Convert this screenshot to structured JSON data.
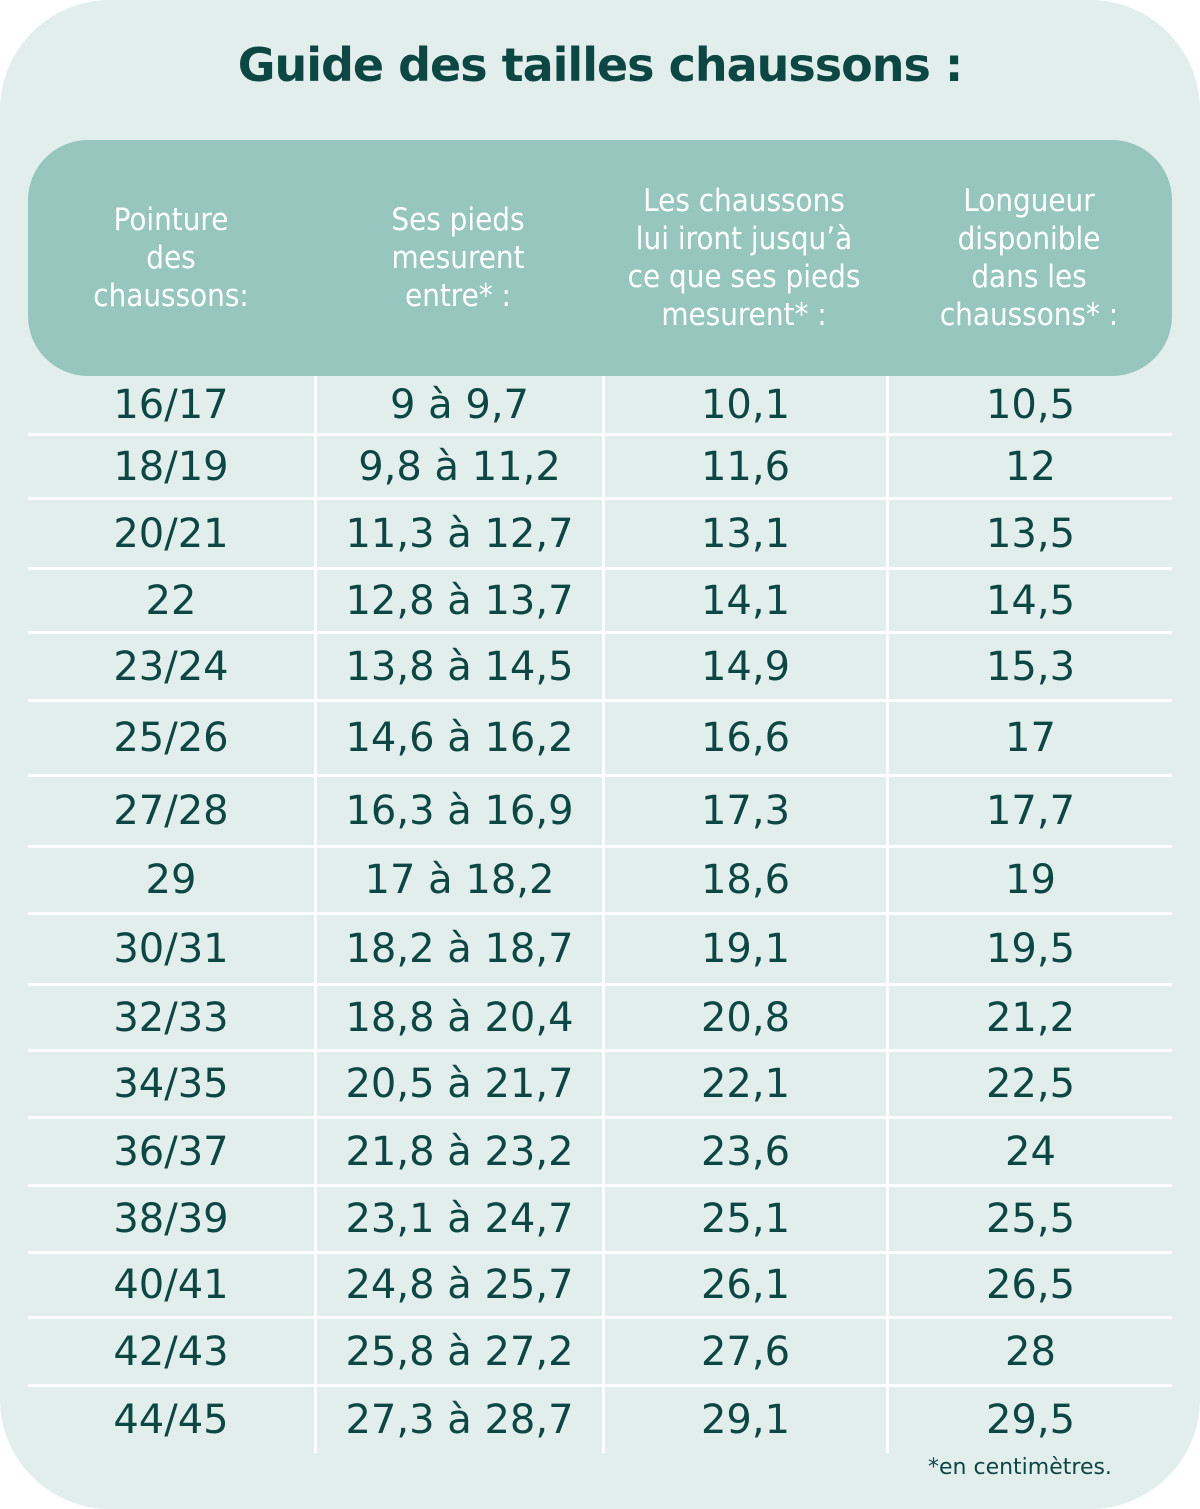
{
  "title": "Guide des tailles chaussons :",
  "colors": {
    "background": "#e2eeec",
    "header": "#97c6bf",
    "text": "#0d4743",
    "header_text": "#ffffff"
  },
  "headers": [
    "Pointure\ndes\nchaussons:",
    "Ses pieds\nmesurent\nentre* :",
    "Les chaussons\nlui iront jusqu’à\nce que ses pieds\nmesurent* :",
    "Longueur\ndisponible\ndans les\nchaussons* :"
  ],
  "rows": [
    [
      "16/17",
      "9 à 9,7",
      "10,1",
      "10,5"
    ],
    [
      "18/19",
      "9,8 à 11,2",
      "11,6",
      "12"
    ],
    [
      "20/21",
      "11,3 à 12,7",
      "13,1",
      "13,5"
    ],
    [
      "22",
      "12,8 à 13,7",
      "14,1",
      "14,5"
    ],
    [
      "23/24",
      "13,8 à 14,5",
      "14,9",
      "15,3"
    ],
    [
      "25/26",
      "14,6 à 16,2",
      "16,6",
      "17"
    ],
    [
      "27/28",
      "16,3 à 16,9",
      "17,3",
      "17,7"
    ],
    [
      "29",
      "17 à 18,2",
      "18,6",
      "19"
    ],
    [
      "30/31",
      "18,2 à 18,7",
      "19,1",
      "19,5"
    ],
    [
      "32/33",
      "18,8 à 20,4",
      "20,8",
      "21,2"
    ],
    [
      "34/35",
      "20,5 à 21,7",
      "22,1",
      "22,5"
    ],
    [
      "36/37",
      "21,8 à 23,2",
      "23,6",
      "24"
    ],
    [
      "38/39",
      "23,1 à 24,7",
      "25,1",
      "25,5"
    ],
    [
      "40/41",
      "24,8 à 25,7",
      "26,1",
      "26,5"
    ],
    [
      "42/43",
      "25,8 à 27,2",
      "27,6",
      "28"
    ],
    [
      "44/45",
      "27,3 à 28,7",
      "29,1",
      "29,5"
    ]
  ],
  "footnote": "*en centimètres."
}
